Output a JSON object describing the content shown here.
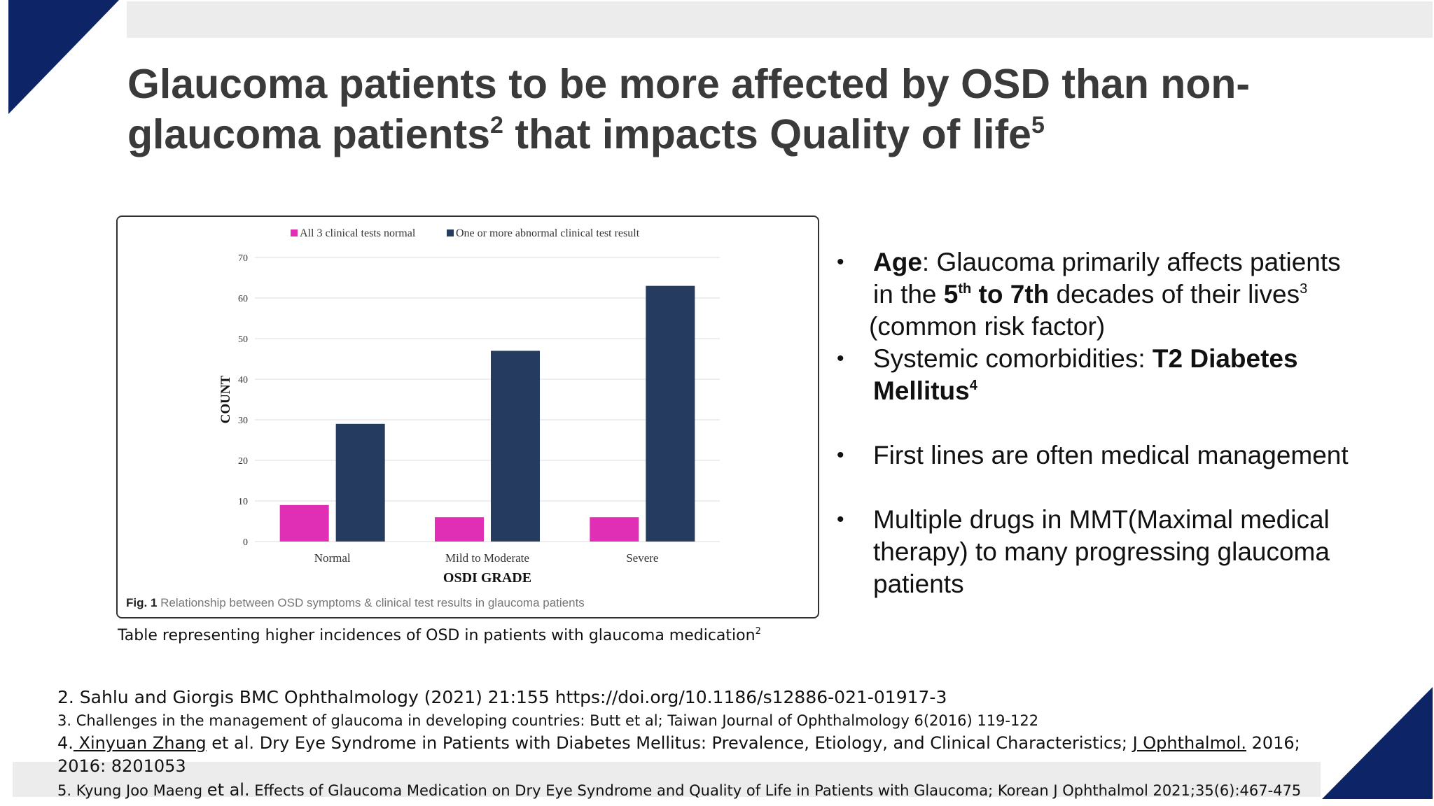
{
  "slide": {
    "title_line1": "Glaucoma patients to be more affected by OSD than non-",
    "title_line2_a": "glaucoma patients",
    "title_sup1": "2",
    "title_line2_b": " that impacts Quality of life",
    "title_sup2": "5",
    "accent_color": "#0d2466",
    "band_color": "#ececec"
  },
  "chart_data": {
    "type": "bar",
    "categories": [
      "Normal",
      "Mild to Moderate",
      "Severe"
    ],
    "series": [
      {
        "name": "All 3 clinical tests normal",
        "color": "#e02fb4",
        "values": [
          9,
          6,
          6
        ]
      },
      {
        "name": "One or more abnormal clinical test result",
        "color": "#253b5f",
        "values": [
          29,
          47,
          63
        ]
      }
    ],
    "xlabel": "OSDI GRADE",
    "ylabel": "COUNT",
    "ylim": [
      0,
      70
    ],
    "yticks": [
      "0",
      "10",
      "20",
      "30",
      "40",
      "50",
      "60",
      "70"
    ],
    "grid": true,
    "legend": "top",
    "figure_label": "Fig. 1",
    "figure_caption": "Relationship between OSD symptoms & clinical test results in glaucoma patients"
  },
  "caption": {
    "text": "Table representing higher incidences of OSD in patients with glaucoma medication",
    "sup": "2"
  },
  "bullets": {
    "b1_label": "Age",
    "b1_text": ":  Glaucoma primarily affects patients",
    "b1_line2_a": "in the ",
    "b1_bold_5": "5",
    "b1_sup_th": "th",
    "b1_bold_to": " to 7th",
    "b1_line2_b": " decades of their lives",
    "b1_sup3": "3",
    "b1_line3": "(common risk factor)",
    "b2_text": "Systemic comorbidities: ",
    "b2_bold": "T2 Diabetes",
    "b2_bold2": "Mellitus",
    "b2_sup": "4",
    "b3_text": "First lines are often medical management",
    "b4_line1": "Multiple drugs in MMT(Maximal medical",
    "b4_line2": "therapy) to many progressing glaucoma",
    "b4_line3": "patients"
  },
  "references": {
    "r2": "2. Sahlu and Giorgis BMC Ophthalmology (2021) 21:155 https://doi.org/10.1186/s12886-021-01917-3",
    "r3": "3. Challenges in the management of glaucoma in developing countries: Butt et al; Taiwan Journal of Ophthalmology  6(2016) 119-122",
    "r4_prefix": "4.",
    "r4_author": " Xinyuan Zhang",
    "r4_mid": " et al. Dry Eye Syndrome in Patients with Diabetes Mellitus: Prevalence, Etiology, and Clinical Characteristics; ",
    "r4_journal": "J Ophthalmol.",
    "r4_tail": " 2016; 2016: 8201053",
    "r5_a": "5. Kyung Joo Maeng ",
    "r5_etal": "et al.",
    "r5_b": " Effects of Glaucoma Medication on Dry Eye Syndrome and Quality of Life in Patients with Glaucoma",
    "r5_c": "; Korean J Ophthalmol 2021;35(6):467-475"
  }
}
